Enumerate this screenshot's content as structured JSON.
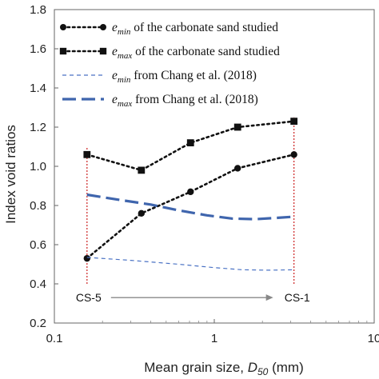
{
  "chart_data": {
    "type": "line",
    "title": "",
    "xlabel": {
      "prefix": "Mean grain size, ",
      "symbol": "D",
      "sub": "50",
      "suffix": " (mm)"
    },
    "ylabel": "Index void ratios",
    "x_scale": "log",
    "xlim": [
      0.1,
      10
    ],
    "ylim": [
      0.2,
      1.8
    ],
    "x_ticks": [
      0.1,
      1,
      10
    ],
    "x_tick_labels": [
      "0.1",
      "1",
      "10"
    ],
    "y_ticks": [
      0.2,
      0.4,
      0.6,
      0.8,
      1.0,
      1.2,
      1.4,
      1.6,
      1.8
    ],
    "y_tick_labels": [
      "0.2",
      "0.4",
      "0.6",
      "0.8",
      "1.0",
      "1.2",
      "1.4",
      "1.6",
      "1.8"
    ],
    "grid": false,
    "legend_position": "top-left",
    "series": [
      {
        "key": "emin_study",
        "legend": {
          "symbol": "e",
          "sub": "min",
          "rest": " of the carbonate sand studied"
        },
        "style": "dotted",
        "marker": "circle",
        "color": "#111111",
        "x": [
          0.16,
          0.35,
          0.71,
          1.4,
          3.15
        ],
        "y": [
          0.53,
          0.76,
          0.87,
          0.99,
          1.06
        ]
      },
      {
        "key": "emax_study",
        "legend": {
          "symbol": "e",
          "sub": "max",
          "rest": " of the carbonate sand studied"
        },
        "style": "dotted",
        "marker": "square",
        "color": "#111111",
        "x": [
          0.16,
          0.35,
          0.71,
          1.4,
          3.15
        ],
        "y": [
          1.06,
          0.98,
          1.12,
          1.2,
          1.23
        ]
      },
      {
        "key": "emin_chang",
        "legend": {
          "symbol": "e",
          "sub": "min",
          "rest": " from Chang et al. (2018)"
        },
        "style": "thin-dashed",
        "marker": "none",
        "color": "#4a72c4",
        "x": [
          0.16,
          0.3,
          0.6,
          1.0,
          1.5,
          2.2,
          3.15
        ],
        "y": [
          0.535,
          0.52,
          0.5,
          0.483,
          0.472,
          0.47,
          0.472
        ]
      },
      {
        "key": "emax_chang",
        "legend": {
          "symbol": "e",
          "sub": "max",
          "rest": " from Chang et al. (2018)"
        },
        "style": "thick-dashed",
        "marker": "none",
        "color": "#3f65ad",
        "x": [
          0.16,
          0.25,
          0.4,
          0.6,
          0.9,
          1.3,
          1.8,
          2.5,
          3.15
        ],
        "y": [
          0.855,
          0.83,
          0.805,
          0.775,
          0.75,
          0.733,
          0.73,
          0.737,
          0.743
        ]
      }
    ],
    "reference_lines": [
      {
        "x": 0.16,
        "y_from": 0.4,
        "y_to": 1.1,
        "color": "#cc2222"
      },
      {
        "x": 3.15,
        "y_from": 0.4,
        "y_to": 1.25,
        "color": "#cc2222"
      }
    ],
    "annotations": {
      "left_label": "CS-5",
      "right_label": "CS-1",
      "arrow_y": 0.33,
      "arrow_color": "#888888"
    }
  }
}
